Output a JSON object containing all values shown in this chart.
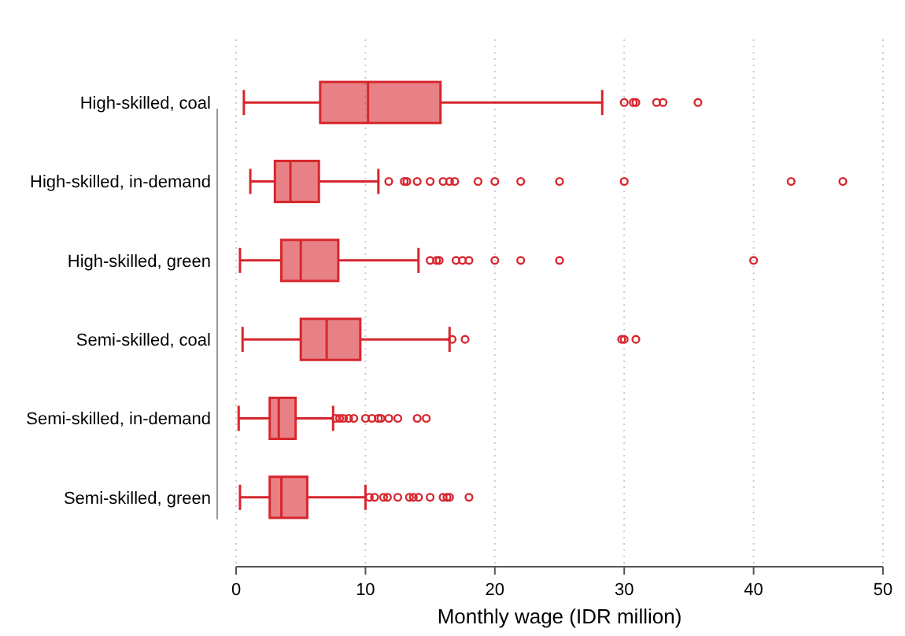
{
  "chart_data": {
    "type": "box",
    "orientation": "horizontal",
    "xlabel": "Monthly wage (IDR million)",
    "categories": [
      "High-skilled, coal",
      "High-skilled, in-demand",
      "High-skilled, green",
      "Semi-skilled, coal",
      "Semi-skilled, in-demand",
      "Semi-skilled, green"
    ],
    "series": [
      {
        "color": "#d7262e",
        "boxes": [
          {
            "low": 0.6,
            "q1": 6.5,
            "median": 10.2,
            "q3": 15.8,
            "high": 28.3,
            "outliers": [
              30.0,
              30.7,
              30.9,
              32.5,
              33.0,
              35.7
            ]
          },
          {
            "low": 1.1,
            "q1": 3.0,
            "median": 4.2,
            "q3": 6.4,
            "high": 11.0,
            "outliers": [
              11.8,
              13.0,
              13.2,
              14.0,
              15.0,
              16.0,
              16.5,
              16.9,
              18.7,
              20.0,
              22.0,
              25.0,
              30.0,
              42.9,
              46.9
            ]
          },
          {
            "low": 0.3,
            "q1": 3.5,
            "median": 5.0,
            "q3": 7.9,
            "high": 14.1,
            "outliers": [
              15.0,
              15.5,
              15.7,
              17.0,
              17.5,
              18.0,
              20.0,
              22.0,
              25.0,
              40.0
            ]
          },
          {
            "low": 0.5,
            "q1": 5.0,
            "median": 7.0,
            "q3": 9.6,
            "high": 16.5,
            "outliers": [
              16.7,
              17.7,
              29.8,
              30.0,
              30.9
            ]
          },
          {
            "low": 0.2,
            "q1": 2.6,
            "median": 3.3,
            "q3": 4.6,
            "high": 7.5,
            "outliers": [
              7.7,
              8.0,
              8.3,
              8.7,
              9.1,
              10.0,
              10.5,
              11.0,
              11.2,
              11.8,
              12.5,
              14.0,
              14.7
            ]
          },
          {
            "low": 0.3,
            "q1": 2.6,
            "median": 3.5,
            "q3": 5.5,
            "high": 10.0,
            "outliers": [
              10.3,
              10.7,
              11.4,
              11.7,
              12.5,
              13.4,
              13.7,
              14.1,
              15.0,
              16.0,
              16.3,
              16.5,
              18.0
            ]
          }
        ]
      }
    ],
    "xlim": [
      0,
      50
    ],
    "xticks": [
      0,
      10,
      20,
      30,
      40,
      50
    ],
    "grid": "x"
  }
}
